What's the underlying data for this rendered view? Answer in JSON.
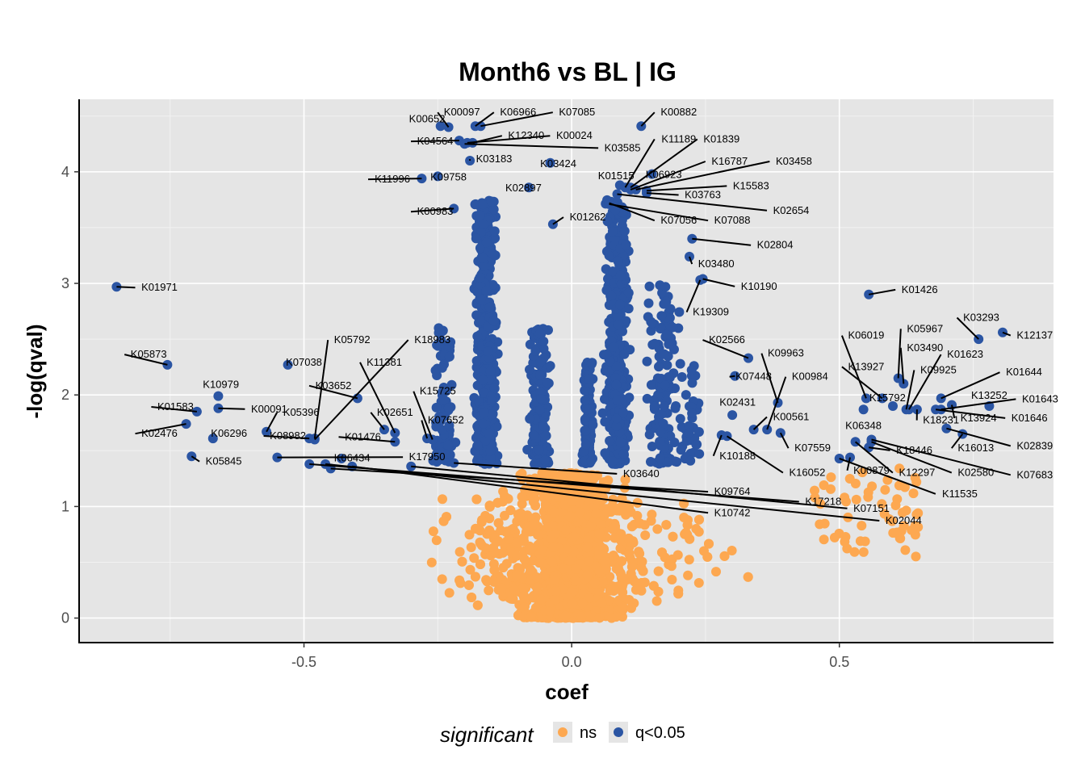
{
  "chart_data": {
    "type": "scatter",
    "title": "Month6 vs BL | IG",
    "xlabel": "coef",
    "ylabel": "-log(qval)",
    "xlim": [
      -0.92,
      0.9
    ],
    "ylim": [
      -0.22,
      4.65
    ],
    "x_ticks": [
      -0.5,
      0.0,
      0.5
    ],
    "x_tick_labels": [
      "-0.5",
      "0.0",
      "0.5"
    ],
    "y_ticks": [
      0,
      1,
      2,
      3,
      4
    ],
    "y_tick_labels": [
      "0",
      "1",
      "2",
      "3",
      "4"
    ],
    "grid": true,
    "legend": {
      "title": "significant",
      "placement": "bottom",
      "entries": [
        {
          "label": "ns",
          "color": "#FDA851"
        },
        {
          "label": "q<0.05",
          "color": "#2B55A3"
        }
      ]
    },
    "colors": {
      "ns": "#FDA851",
      "sig": "#2B55A3",
      "panel": "#E5E5E5",
      "grid": "#F5F5F5"
    },
    "labeled_points": [
      {
        "label": "K00097",
        "x": -0.23,
        "y": 4.4,
        "lx": -0.205,
        "ly": 4.54
      },
      {
        "label": "K00652",
        "x": -0.245,
        "y": 4.41,
        "lx": -0.27,
        "ly": 4.48
      },
      {
        "label": "K06966",
        "x": -0.18,
        "y": 4.41,
        "lx": -0.1,
        "ly": 4.54
      },
      {
        "label": "K07085",
        "x": -0.17,
        "y": 4.41,
        "lx": 0.01,
        "ly": 4.54
      },
      {
        "label": "K00882",
        "x": 0.13,
        "y": 4.41,
        "lx": 0.2,
        "ly": 4.54
      },
      {
        "label": "K04564",
        "x": -0.21,
        "y": 4.28,
        "lx": -0.255,
        "ly": 4.28
      },
      {
        "label": "K12340",
        "x": -0.185,
        "y": 4.26,
        "lx": -0.085,
        "ly": 4.33
      },
      {
        "label": "K00024",
        "x": -0.195,
        "y": 4.26,
        "lx": 0.005,
        "ly": 4.33
      },
      {
        "label": "K03585",
        "x": -0.2,
        "y": 4.25,
        "lx": 0.095,
        "ly": 4.22
      },
      {
        "label": "K03183",
        "x": -0.19,
        "y": 4.1,
        "lx": -0.145,
        "ly": 4.12
      },
      {
        "label": "K03424",
        "x": -0.04,
        "y": 4.08,
        "lx": -0.025,
        "ly": 4.08
      },
      {
        "label": "K11996",
        "x": -0.28,
        "y": 3.94,
        "lx": -0.335,
        "ly": 3.94
      },
      {
        "label": "K09758",
        "x": -0.25,
        "y": 3.96,
        "lx": -0.23,
        "ly": 3.96
      },
      {
        "label": "K01515",
        "x": 0.09,
        "y": 3.88,
        "lx": 0.083,
        "ly": 3.97
      },
      {
        "label": "K11189",
        "x": 0.1,
        "y": 3.86,
        "lx": 0.2,
        "ly": 4.3
      },
      {
        "label": "K01839",
        "x": 0.11,
        "y": 3.86,
        "lx": 0.28,
        "ly": 4.3
      },
      {
        "label": "K06923",
        "x": 0.15,
        "y": 3.98,
        "lx": 0.172,
        "ly": 3.98
      },
      {
        "label": "K16787",
        "x": 0.11,
        "y": 3.84,
        "lx": 0.295,
        "ly": 4.1
      },
      {
        "label": "K03458",
        "x": 0.12,
        "y": 3.84,
        "lx": 0.415,
        "ly": 4.1
      },
      {
        "label": "K15583",
        "x": 0.14,
        "y": 3.83,
        "lx": 0.335,
        "ly": 3.88
      },
      {
        "label": "K03763",
        "x": 0.14,
        "y": 3.81,
        "lx": 0.245,
        "ly": 3.8
      },
      {
        "label": "K02654",
        "x": 0.085,
        "y": 3.8,
        "lx": 0.41,
        "ly": 3.66
      },
      {
        "label": "K02897",
        "x": -0.08,
        "y": 3.86,
        "lx": -0.09,
        "ly": 3.86
      },
      {
        "label": "K00983",
        "x": -0.22,
        "y": 3.67,
        "lx": -0.255,
        "ly": 3.65
      },
      {
        "label": "K01262",
        "x": -0.035,
        "y": 3.53,
        "lx": 0.03,
        "ly": 3.6
      },
      {
        "label": "K07056",
        "x": 0.07,
        "y": 3.72,
        "lx": 0.2,
        "ly": 3.57
      },
      {
        "label": "K07088",
        "x": 0.07,
        "y": 3.71,
        "lx": 0.3,
        "ly": 3.57
      },
      {
        "label": "K02804",
        "x": 0.225,
        "y": 3.4,
        "lx": 0.38,
        "ly": 3.35
      },
      {
        "label": "K03480",
        "x": 0.22,
        "y": 3.24,
        "lx": 0.27,
        "ly": 3.18
      },
      {
        "label": "K10190",
        "x": 0.245,
        "y": 3.04,
        "lx": 0.35,
        "ly": 2.98
      },
      {
        "label": "K19309",
        "x": 0.24,
        "y": 3.03,
        "lx": 0.26,
        "ly": 2.75
      },
      {
        "label": "K01971",
        "x": -0.85,
        "y": 2.97,
        "lx": -0.77,
        "ly": 2.97
      },
      {
        "label": "K01426",
        "x": 0.555,
        "y": 2.9,
        "lx": 0.65,
        "ly": 2.95
      },
      {
        "label": "K03293",
        "x": 0.76,
        "y": 2.5,
        "lx": 0.765,
        "ly": 2.7
      },
      {
        "label": "K12137",
        "x": 0.805,
        "y": 2.56,
        "lx": 0.865,
        "ly": 2.54
      },
      {
        "label": "K05967",
        "x": 0.61,
        "y": 2.15,
        "lx": 0.66,
        "ly": 2.6
      },
      {
        "label": "K06019",
        "x": 0.55,
        "y": 1.97,
        "lx": 0.55,
        "ly": 2.54
      },
      {
        "label": "K03490",
        "x": 0.62,
        "y": 2.1,
        "lx": 0.66,
        "ly": 2.43
      },
      {
        "label": "K13927",
        "x": 0.58,
        "y": 1.97,
        "lx": 0.55,
        "ly": 2.26
      },
      {
        "label": "K09925",
        "x": 0.625,
        "y": 1.87,
        "lx": 0.685,
        "ly": 2.23
      },
      {
        "label": "K01623",
        "x": 0.63,
        "y": 1.87,
        "lx": 0.735,
        "ly": 2.37
      },
      {
        "label": "K01644",
        "x": 0.69,
        "y": 1.97,
        "lx": 0.845,
        "ly": 2.21
      },
      {
        "label": "K01643",
        "x": 0.69,
        "y": 1.87,
        "lx": 0.875,
        "ly": 1.97
      },
      {
        "label": "K01646",
        "x": 0.68,
        "y": 1.87,
        "lx": 0.855,
        "ly": 1.8
      },
      {
        "label": "K13252",
        "x": 0.78,
        "y": 1.9,
        "lx": 0.78,
        "ly": 2.0
      },
      {
        "label": "K13924",
        "x": 0.71,
        "y": 1.91,
        "lx": 0.76,
        "ly": 1.8
      },
      {
        "label": "K18231",
        "x": 0.645,
        "y": 1.87,
        "lx": 0.69,
        "ly": 1.78
      },
      {
        "label": "K15792",
        "x": 0.6,
        "y": 1.9,
        "lx": 0.59,
        "ly": 1.98
      },
      {
        "label": "K06348",
        "x": 0.545,
        "y": 1.87,
        "lx": 0.545,
        "ly": 1.73
      },
      {
        "label": "K16013",
        "x": 0.73,
        "y": 1.65,
        "lx": 0.755,
        "ly": 1.53
      },
      {
        "label": "K02839",
        "x": 0.7,
        "y": 1.7,
        "lx": 0.865,
        "ly": 1.55
      },
      {
        "label": "K18446",
        "x": 0.555,
        "y": 1.53,
        "lx": 0.64,
        "ly": 1.51
      },
      {
        "label": "K12297",
        "x": 0.53,
        "y": 1.58,
        "lx": 0.645,
        "ly": 1.31
      },
      {
        "label": "K02580",
        "x": 0.56,
        "y": 1.58,
        "lx": 0.755,
        "ly": 1.31
      },
      {
        "label": "K07683",
        "x": 0.56,
        "y": 1.6,
        "lx": 0.865,
        "ly": 1.29
      },
      {
        "label": "K11535",
        "x": 0.5,
        "y": 1.43,
        "lx": 0.725,
        "ly": 1.12
      },
      {
        "label": "K00879",
        "x": 0.52,
        "y": 1.44,
        "lx": 0.56,
        "ly": 1.33
      },
      {
        "label": "K02566",
        "x": 0.33,
        "y": 2.33,
        "lx": 0.29,
        "ly": 2.5
      },
      {
        "label": "K09963",
        "x": 0.385,
        "y": 1.93,
        "lx": 0.4,
        "ly": 2.38
      },
      {
        "label": "K07448",
        "x": 0.305,
        "y": 2.17,
        "lx": 0.34,
        "ly": 2.17
      },
      {
        "label": "K00984",
        "x": 0.365,
        "y": 1.69,
        "lx": 0.445,
        "ly": 2.17
      },
      {
        "label": "K02431",
        "x": 0.3,
        "y": 1.82,
        "lx": 0.31,
        "ly": 1.94
      },
      {
        "label": "K00561",
        "x": 0.34,
        "y": 1.69,
        "lx": 0.41,
        "ly": 1.81
      },
      {
        "label": "K07559",
        "x": 0.39,
        "y": 1.66,
        "lx": 0.45,
        "ly": 1.53
      },
      {
        "label": "K10188",
        "x": 0.28,
        "y": 1.64,
        "lx": 0.31,
        "ly": 1.46
      },
      {
        "label": "K16052",
        "x": 0.29,
        "y": 1.63,
        "lx": 0.44,
        "ly": 1.31
      },
      {
        "label": "K09764",
        "x": -0.45,
        "y": 1.34,
        "lx": 0.3,
        "ly": 1.14
      },
      {
        "label": "K17218",
        "x": -0.49,
        "y": 1.38,
        "lx": 0.47,
        "ly": 1.05
      },
      {
        "label": "K07151",
        "x": -0.3,
        "y": 1.36,
        "lx": 0.56,
        "ly": 0.99
      },
      {
        "label": "K10742",
        "x": -0.41,
        "y": 1.36,
        "lx": 0.3,
        "ly": 0.95
      },
      {
        "label": "K02044",
        "x": -0.46,
        "y": 1.38,
        "lx": 0.62,
        "ly": 0.88
      },
      {
        "label": "K03640",
        "x": -0.22,
        "y": 1.39,
        "lx": 0.13,
        "ly": 1.3
      },
      {
        "label": "K17950",
        "x": -0.55,
        "y": 1.44,
        "lx": -0.27,
        "ly": 1.45
      },
      {
        "label": "K06434",
        "x": -0.43,
        "y": 1.43,
        "lx": -0.41,
        "ly": 1.44
      },
      {
        "label": "K05873",
        "x": -0.755,
        "y": 2.27,
        "lx": -0.79,
        "ly": 2.37
      },
      {
        "label": "K07038",
        "x": -0.53,
        "y": 2.27,
        "lx": -0.5,
        "ly": 2.3
      },
      {
        "label": "K05792",
        "x": -0.48,
        "y": 1.61,
        "lx": -0.41,
        "ly": 2.5
      },
      {
        "label": "K18983",
        "x": -0.48,
        "y": 1.6,
        "lx": -0.26,
        "ly": 2.5
      },
      {
        "label": "K11381",
        "x": -0.33,
        "y": 1.66,
        "lx": -0.35,
        "ly": 2.3
      },
      {
        "label": "K03652",
        "x": -0.4,
        "y": 1.97,
        "lx": -0.445,
        "ly": 2.09
      },
      {
        "label": "K15725",
        "x": -0.26,
        "y": 1.6,
        "lx": -0.25,
        "ly": 2.04
      },
      {
        "label": "K02651",
        "x": -0.35,
        "y": 1.69,
        "lx": -0.33,
        "ly": 1.85
      },
      {
        "label": "K07652",
        "x": -0.27,
        "y": 1.61,
        "lx": -0.235,
        "ly": 1.78
      },
      {
        "label": "K01476",
        "x": -0.33,
        "y": 1.58,
        "lx": -0.39,
        "ly": 1.63
      },
      {
        "label": "K10979",
        "x": -0.66,
        "y": 1.99,
        "lx": -0.655,
        "ly": 2.1
      },
      {
        "label": "K00091",
        "x": -0.66,
        "y": 1.88,
        "lx": -0.565,
        "ly": 1.88
      },
      {
        "label": "K01583",
        "x": -0.7,
        "y": 1.85,
        "lx": -0.74,
        "ly": 1.9
      },
      {
        "label": "K05396",
        "x": -0.57,
        "y": 1.67,
        "lx": -0.505,
        "ly": 1.85
      },
      {
        "label": "K08982",
        "x": -0.49,
        "y": 1.61,
        "lx": -0.53,
        "ly": 1.64
      },
      {
        "label": "K02476",
        "x": -0.72,
        "y": 1.74,
        "lx": -0.77,
        "ly": 1.66
      },
      {
        "label": "K06296",
        "x": -0.67,
        "y": 1.61,
        "lx": -0.64,
        "ly": 1.66
      },
      {
        "label": "K05845",
        "x": -0.71,
        "y": 1.45,
        "lx": -0.65,
        "ly": 1.41
      }
    ],
    "other_significant_points": "approx. 900 additional q<0.05 points in two dense bands at coef -0.30..-0.05 and 0.02..0.20, -log(qval) 1.4..4.0",
    "ns_points": "approx. 3500 points forming a cup-shaped cloud, coef -0.62..0.70, -log(qval) 0..1.3"
  }
}
